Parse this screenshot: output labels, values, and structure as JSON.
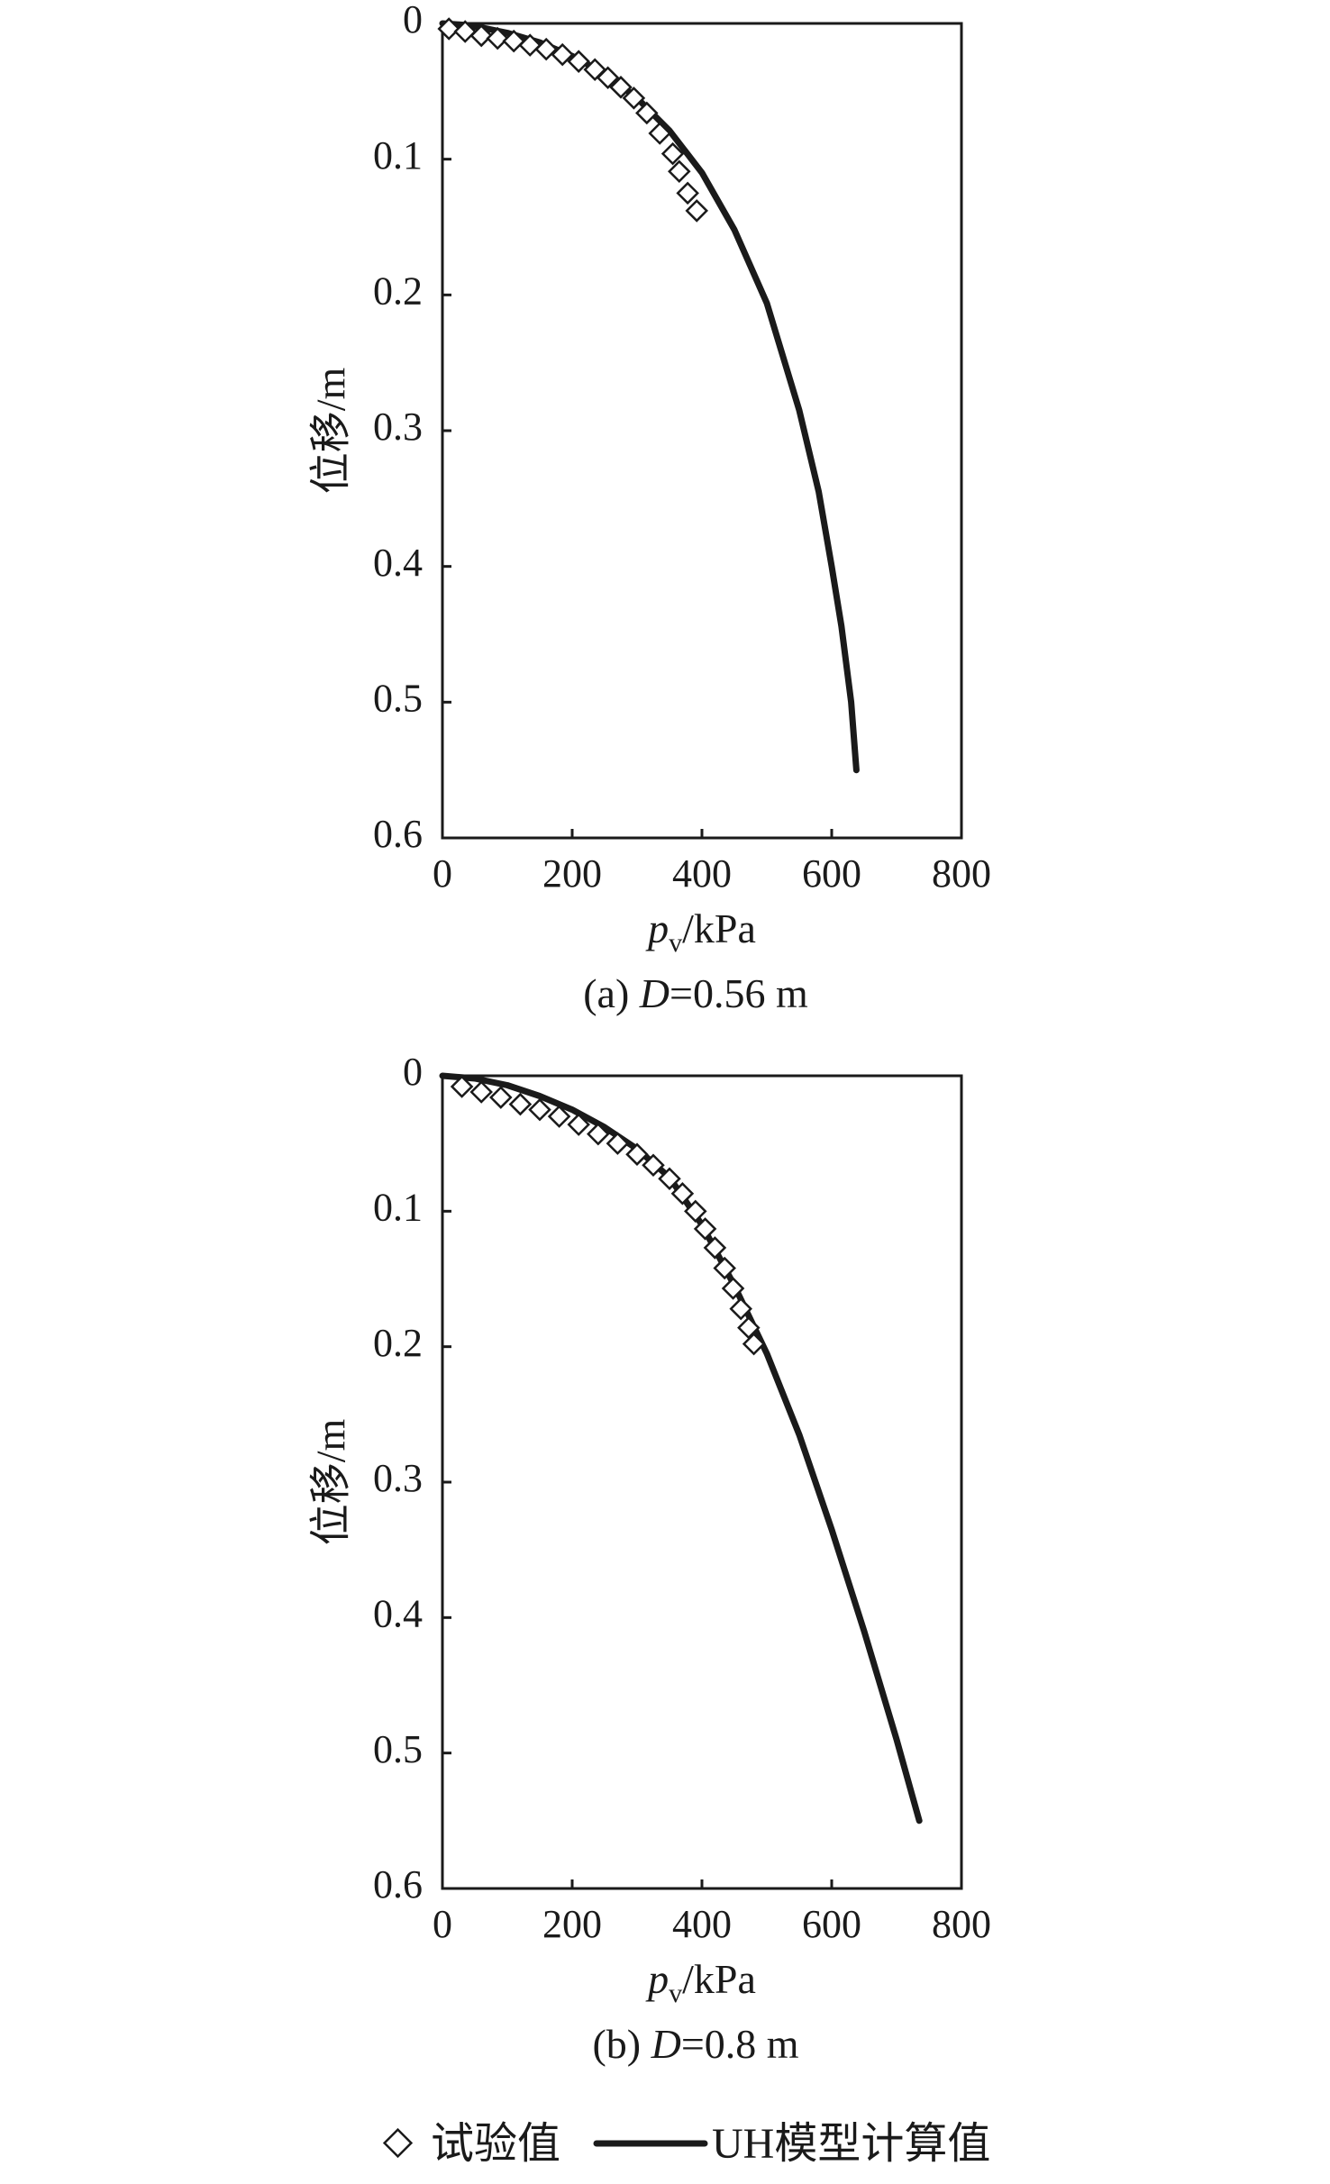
{
  "legend": {
    "test_label": "试验值",
    "model_label": "UH模型计算值"
  },
  "colors": {
    "ink": "#1a1a1a",
    "background": "#ffffff"
  },
  "chart_data": [
    {
      "type": "line",
      "caption_prefix": "(a) ",
      "caption_symbol": "D",
      "caption_suffix": "=0.56 m",
      "xlabel_symbol": "p",
      "xlabel_subscript": "v",
      "xlabel_unit": "/kPa",
      "ylabel": "位移/m",
      "xlim": [
        0,
        800
      ],
      "ylim": [
        0,
        0.6
      ],
      "y_inverted": true,
      "x_ticks": [
        "0",
        "200",
        "400",
        "600",
        "800"
      ],
      "y_ticks": [
        "0",
        "0.1",
        "0.2",
        "0.3",
        "0.4",
        "0.5",
        "0.6"
      ],
      "grid": false,
      "series": [
        {
          "name": "试验值",
          "type": "scatter",
          "marker": "diamond",
          "x": [
            10,
            35,
            60,
            85,
            110,
            135,
            160,
            185,
            210,
            235,
            255,
            275,
            295,
            315,
            335,
            355,
            365,
            378,
            392
          ],
          "y": [
            0.004,
            0.006,
            0.009,
            0.011,
            0.013,
            0.016,
            0.019,
            0.023,
            0.028,
            0.034,
            0.04,
            0.047,
            0.055,
            0.066,
            0.081,
            0.096,
            0.109,
            0.125,
            0.138
          ]
        },
        {
          "name": "UH模型计算值",
          "type": "line",
          "x": [
            0,
            30,
            60,
            100,
            150,
            200,
            250,
            300,
            350,
            400,
            450,
            500,
            550,
            580,
            600,
            615,
            630,
            638
          ],
          "y": [
            0,
            0.001,
            0.003,
            0.007,
            0.014,
            0.024,
            0.037,
            0.055,
            0.079,
            0.11,
            0.152,
            0.206,
            0.285,
            0.345,
            0.4,
            0.444,
            0.5,
            0.55
          ]
        }
      ]
    },
    {
      "type": "line",
      "caption_prefix": "(b) ",
      "caption_symbol": "D",
      "caption_suffix": "=0.8 m",
      "xlabel_symbol": "p",
      "xlabel_subscript": "v",
      "xlabel_unit": "/kPa",
      "ylabel": "位移/m",
      "xlim": [
        0,
        800
      ],
      "ylim": [
        0,
        0.6
      ],
      "y_inverted": true,
      "x_ticks": [
        "0",
        "200",
        "400",
        "600",
        "800"
      ],
      "y_ticks": [
        "0",
        "0.1",
        "0.2",
        "0.3",
        "0.4",
        "0.5",
        "0.6"
      ],
      "grid": false,
      "series": [
        {
          "name": "试验值",
          "type": "scatter",
          "marker": "diamond",
          "x": [
            30,
            60,
            90,
            120,
            150,
            180,
            210,
            240,
            270,
            300,
            325,
            350,
            370,
            390,
            405,
            420,
            435,
            448,
            460,
            472,
            480
          ],
          "y": [
            0.008,
            0.012,
            0.016,
            0.021,
            0.025,
            0.03,
            0.036,
            0.043,
            0.05,
            0.058,
            0.066,
            0.076,
            0.087,
            0.1,
            0.113,
            0.127,
            0.142,
            0.157,
            0.172,
            0.186,
            0.198
          ]
        },
        {
          "name": "UH模型计算值",
          "type": "line",
          "x": [
            0,
            50,
            100,
            150,
            200,
            250,
            300,
            350,
            400,
            450,
            500,
            550,
            600,
            650,
            700,
            735
          ],
          "y": [
            0,
            0.002,
            0.007,
            0.015,
            0.025,
            0.038,
            0.054,
            0.075,
            0.11,
            0.155,
            0.205,
            0.265,
            0.335,
            0.41,
            0.49,
            0.55
          ]
        }
      ]
    }
  ]
}
